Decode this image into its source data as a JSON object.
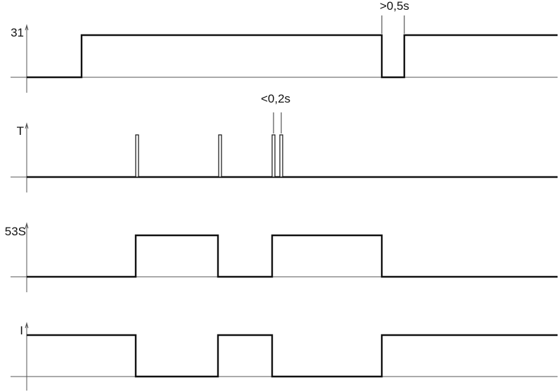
{
  "signals": [
    {
      "label": "31"
    },
    {
      "label": "T"
    },
    {
      "label": "53S"
    },
    {
      "label": "I"
    }
  ],
  "annotations": [
    {
      "text": ">0,5s"
    },
    {
      "text": "<0,2s"
    }
  ]
}
